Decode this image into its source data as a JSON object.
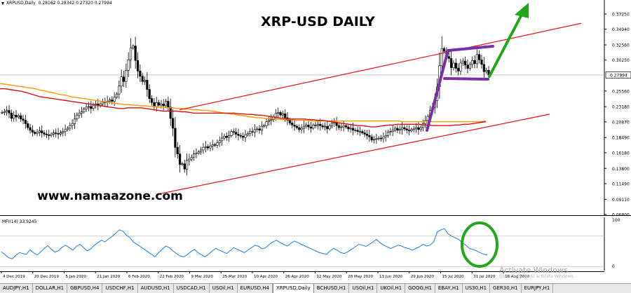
{
  "symbol": {
    "name": "XRPUSD,Daily",
    "ohlc": "0.28162 0.28342 0.27320 0.27994"
  },
  "title": "XRP-USD DAILY",
  "website": "www.namaazone.com",
  "indicator": {
    "label": "MFI(14) 33.9245",
    "levels": [
      "100",
      "0"
    ]
  },
  "activate_windows": {
    "line1": "Activate Windows",
    "line2": "Go to Settings to activate Windows."
  },
  "colors": {
    "candle": "#000000",
    "ma_fast": "#dd1111",
    "ma_slow": "#ff9900",
    "channel": "#ee1111",
    "flag": "#7a2fa8",
    "arrow": "#22a61a",
    "mfi": "#1e7ce8",
    "annotation_circle": "#22a61a",
    "price_label_bg": "#ffffff"
  },
  "chart_data": {
    "type": "candlestick",
    "price_axis": [
      "0.37250",
      "0.34940",
      "0.32560",
      "0.30250",
      "0.27994",
      "0.25560",
      "0.23180",
      "0.20870",
      "0.18490",
      "0.16180",
      "0.13800",
      "0.11490",
      "0.09110",
      "0.06800"
    ],
    "current_price": "0.27994",
    "date_axis": [
      "4 Dec 2019",
      "20 Dec 2019",
      "5 Jan 2020",
      "21 Jan 2020",
      "6 Feb 2020",
      "22 Feb 2020",
      "9 Mar 2020",
      "25 Mar 2020",
      "10 Apr 2020",
      "26 Apr 2020",
      "12 May 2020",
      "28 May 2020",
      "13 Jun 2020",
      "29 Jun 2020",
      "15 Jul 2020",
      "31 Jul 2020",
      "16 Aug 2020"
    ],
    "close_series": [
      0.223,
      0.224,
      0.226,
      0.222,
      0.214,
      0.219,
      0.216,
      0.218,
      0.213,
      0.211,
      0.206,
      0.2,
      0.196,
      0.193,
      0.191,
      0.193,
      0.195,
      0.192,
      0.19,
      0.189,
      0.188,
      0.19,
      0.192,
      0.191,
      0.19,
      0.192,
      0.194,
      0.197,
      0.199,
      0.203,
      0.206,
      0.213,
      0.219,
      0.222,
      0.224,
      0.228,
      0.231,
      0.232,
      0.229,
      0.234,
      0.236,
      0.233,
      0.236,
      0.239,
      0.238,
      0.24,
      0.242,
      0.24,
      0.246,
      0.251,
      0.263,
      0.277,
      0.27,
      0.287,
      0.303,
      0.321,
      0.324,
      0.302,
      0.286,
      0.278,
      0.27,
      0.272,
      0.258,
      0.244,
      0.238,
      0.232,
      0.238,
      0.234,
      0.236,
      0.233,
      0.24,
      0.231,
      0.214,
      0.199,
      0.17,
      0.16,
      0.144,
      0.145,
      0.137,
      0.15,
      0.152,
      0.155,
      0.16,
      0.161,
      0.163,
      0.166,
      0.17,
      0.171,
      0.169,
      0.172,
      0.174,
      0.173,
      0.177,
      0.18,
      0.184,
      0.187,
      0.185,
      0.188,
      0.194,
      0.193,
      0.19,
      0.188,
      0.187,
      0.185,
      0.189,
      0.191,
      0.194,
      0.193,
      0.197,
      0.198,
      0.196,
      0.202,
      0.203,
      0.209,
      0.211,
      0.212,
      0.216,
      0.222,
      0.223,
      0.219,
      0.221,
      0.215,
      0.211,
      0.207,
      0.204,
      0.202,
      0.2,
      0.197,
      0.199,
      0.202,
      0.204,
      0.201,
      0.199,
      0.204,
      0.203,
      0.205,
      0.203,
      0.201,
      0.202,
      0.198,
      0.203,
      0.207,
      0.208,
      0.203,
      0.2,
      0.201,
      0.203,
      0.201,
      0.198,
      0.199,
      0.196,
      0.196,
      0.194,
      0.194,
      0.192,
      0.19,
      0.188,
      0.186,
      0.181,
      0.182,
      0.183,
      0.184,
      0.183,
      0.186,
      0.188,
      0.193,
      0.194,
      0.196,
      0.199,
      0.196,
      0.197,
      0.2,
      0.198,
      0.196,
      0.195,
      0.197,
      0.198,
      0.2,
      0.197,
      0.2,
      0.206,
      0.211,
      0.217,
      0.226,
      0.231,
      0.241,
      0.262,
      0.294,
      0.32,
      0.316,
      0.308,
      0.305,
      0.291,
      0.298,
      0.29,
      0.286,
      0.298,
      0.301,
      0.295,
      0.29,
      0.296,
      0.302,
      0.297,
      0.311,
      0.303,
      0.296,
      0.285,
      0.287,
      0.28
    ],
    "ma_fast": [
      0.259,
      0.259,
      0.258,
      0.257,
      0.256,
      0.255,
      0.253,
      0.251,
      0.249,
      0.247,
      0.246,
      0.245,
      0.244,
      0.243,
      0.242,
      0.241,
      0.24,
      0.239,
      0.238,
      0.237,
      0.236,
      0.235,
      0.234,
      0.233,
      0.232,
      0.231,
      0.23,
      0.229,
      0.229,
      0.23,
      0.23,
      0.23,
      0.23,
      0.229,
      0.228,
      0.227,
      0.226,
      0.225,
      0.225,
      0.225,
      0.225,
      0.224,
      0.224,
      0.223,
      0.222,
      0.222,
      0.222,
      0.222,
      0.222,
      0.222,
      0.222,
      0.222,
      0.222,
      0.222,
      0.221,
      0.221,
      0.22,
      0.22,
      0.219,
      0.219,
      0.218,
      0.217,
      0.216,
      0.215,
      0.214,
      0.213,
      0.213,
      0.213,
      0.213,
      0.213,
      0.212,
      0.212,
      0.211,
      0.211,
      0.21,
      0.209,
      0.208,
      0.207,
      0.206,
      0.205,
      0.204,
      0.203,
      0.203,
      0.202,
      0.201,
      0.201,
      0.202,
      0.203,
      0.204,
      0.204,
      0.205,
      0.205,
      0.205,
      0.205,
      0.205,
      0.205,
      0.204,
      0.204,
      0.203,
      0.203,
      0.203,
      0.203,
      0.203,
      0.204,
      0.204,
      0.205,
      0.205,
      0.206,
      0.207,
      0.208,
      0.209
    ],
    "ma_slow": [
      0.267,
      0.266,
      0.265,
      0.264,
      0.263,
      0.262,
      0.261,
      0.26,
      0.259,
      0.257,
      0.256,
      0.254,
      0.253,
      0.251,
      0.25,
      0.249,
      0.247,
      0.246,
      0.245,
      0.244,
      0.243,
      0.242,
      0.241,
      0.24,
      0.239,
      0.238,
      0.237,
      0.236,
      0.235,
      0.235,
      0.234,
      0.234,
      0.233,
      0.233,
      0.232,
      0.232,
      0.231,
      0.231,
      0.23,
      0.23,
      0.229,
      0.229,
      0.228,
      0.228,
      0.227,
      0.227,
      0.226,
      0.226,
      0.225,
      0.224,
      0.223,
      0.222,
      0.221,
      0.22,
      0.219,
      0.218,
      0.217,
      0.216,
      0.215,
      0.215,
      0.214,
      0.214,
      0.213,
      0.213,
      0.212,
      0.212,
      0.212,
      0.211,
      0.211,
      0.211,
      0.211,
      0.21,
      0.21,
      0.21,
      0.21,
      0.21,
      0.21,
      0.21,
      0.21,
      0.21,
      0.21,
      0.21,
      0.21,
      0.21,
      0.21,
      0.21,
      0.21,
      0.21,
      0.21,
      0.21,
      0.21,
      0.209,
      0.209,
      0.209,
      0.209,
      0.209,
      0.209,
      0.209,
      0.209,
      0.209,
      0.209,
      0.209,
      0.209,
      0.209,
      0.209,
      0.209,
      0.209,
      0.209,
      0.209,
      0.209,
      0.21
    ],
    "mfi_series": [
      42,
      35,
      28,
      25,
      33,
      40,
      38,
      36,
      47,
      40,
      34,
      42,
      50,
      57,
      48,
      41,
      45,
      53,
      58,
      52,
      46,
      55,
      60,
      52,
      44,
      49,
      58,
      64,
      70,
      66,
      73,
      79,
      87,
      95,
      92,
      82,
      76,
      65,
      60,
      54,
      48,
      42,
      36,
      30,
      40,
      48,
      56,
      52,
      44,
      38,
      32,
      30,
      35,
      42,
      48,
      40,
      35,
      30,
      36,
      44,
      50,
      46,
      42,
      38,
      44,
      52,
      48,
      44,
      40,
      46,
      52,
      58,
      55,
      49,
      52,
      60,
      66,
      70,
      64,
      60,
      56,
      62,
      68,
      64,
      60,
      56,
      52,
      48,
      44,
      40,
      38,
      36,
      44,
      50,
      46,
      40,
      38,
      42,
      48,
      54,
      60,
      58,
      55,
      60,
      66,
      72,
      64,
      58,
      54,
      50,
      54,
      58,
      56,
      52,
      50,
      46,
      50,
      54,
      60,
      56,
      58,
      66,
      90,
      95,
      98,
      86,
      80,
      76,
      72,
      64,
      58,
      50,
      48,
      44,
      40,
      36,
      34
    ],
    "annotations": [
      "rising channel",
      "bull flag",
      "target arrow",
      "MFI circle"
    ]
  },
  "tabs": [
    "AUDJPY,H1",
    "DOLLAR,H1",
    "GBPUSD,H4",
    "USDCHF,H1",
    "AUDUSD,H1",
    "USDCAD,H1",
    "USOil,H1",
    "EURUSD,H4",
    "XRPUSD,Daily",
    "BCHUSD,H1",
    "USOil,H1",
    "UKOil,H1",
    "GOOG,H1",
    "EBAY,H1",
    "US30,H1",
    "GER30,H1",
    "EURJPY,H1"
  ],
  "active_tab": "XRPUSD,Daily"
}
